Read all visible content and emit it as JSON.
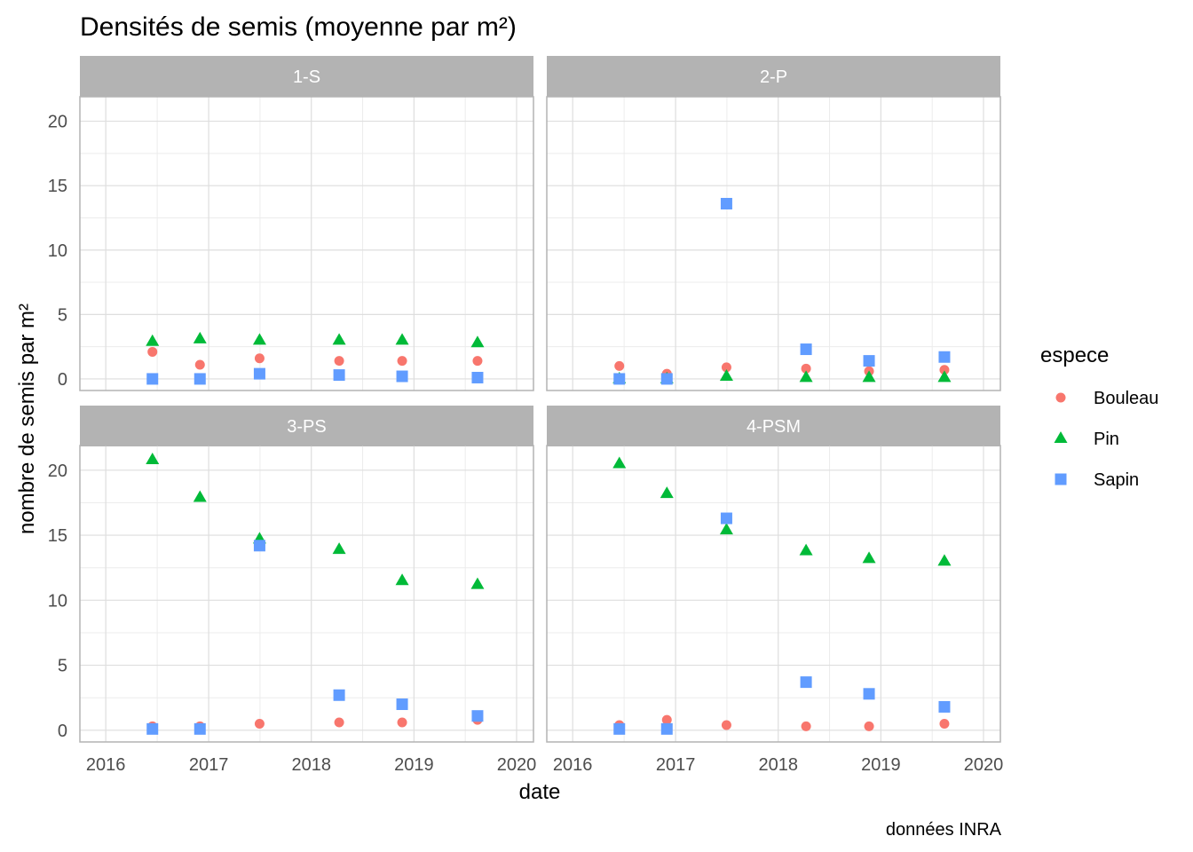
{
  "chart_data": {
    "type": "scatter",
    "title": "Densités de semis (moyenne par m²)",
    "xlabel": "date",
    "ylabel": "nombre de semis par m²",
    "caption": "données INRA",
    "xlim": [
      "2015-10-01",
      "2020-03-01"
    ],
    "ylim": [
      -0.9,
      21.9
    ],
    "x_ticks": [
      "2016-01-01",
      "2017-01-01",
      "2018-01-01",
      "2019-01-01",
      "2020-01-01"
    ],
    "x_tick_labels": [
      "2016",
      "2017",
      "2018",
      "2019",
      "2020"
    ],
    "y_ticks": [
      0,
      5,
      10,
      15,
      20
    ],
    "y_tick_labels": [
      "0",
      "5",
      "10",
      "15",
      "20"
    ],
    "grid": true,
    "legend": {
      "title": "espece",
      "position": "right",
      "entries": [
        {
          "name": "Bouleau",
          "shape": "circle",
          "color": "#F8766D"
        },
        {
          "name": "Pin",
          "shape": "triangle",
          "color": "#00BA38"
        },
        {
          "name": "Sapin",
          "shape": "square",
          "color": "#619CFF"
        }
      ]
    },
    "colors": {
      "strip_bg": "#b3b3b3",
      "grid": "#dedede",
      "panel_border": "#b3b3b3"
    },
    "panels": [
      {
        "label": "1-S",
        "series": [
          {
            "name": "Bouleau",
            "points": [
              [
                "2016-06-15",
                2.1
              ],
              [
                "2016-12-01",
                1.1
              ],
              [
                "2017-07-01",
                1.6
              ],
              [
                "2018-04-10",
                1.4
              ],
              [
                "2018-11-20",
                1.4
              ],
              [
                "2019-08-15",
                1.4
              ]
            ]
          },
          {
            "name": "Pin",
            "points": [
              [
                "2016-06-15",
                2.9
              ],
              [
                "2016-12-01",
                3.1
              ],
              [
                "2017-07-01",
                3.0
              ],
              [
                "2018-04-10",
                3.0
              ],
              [
                "2018-11-20",
                3.0
              ],
              [
                "2019-08-15",
                2.8
              ]
            ]
          },
          {
            "name": "Sapin",
            "points": [
              [
                "2016-06-15",
                0.0
              ],
              [
                "2016-12-01",
                0.0
              ],
              [
                "2017-07-01",
                0.4
              ],
              [
                "2018-04-10",
                0.3
              ],
              [
                "2018-11-20",
                0.2
              ],
              [
                "2019-08-15",
                0.1
              ]
            ]
          }
        ]
      },
      {
        "label": "2-P",
        "series": [
          {
            "name": "Bouleau",
            "points": [
              [
                "2016-06-15",
                1.0
              ],
              [
                "2016-12-01",
                0.4
              ],
              [
                "2017-07-01",
                0.9
              ],
              [
                "2018-04-10",
                0.8
              ],
              [
                "2018-11-20",
                0.6
              ],
              [
                "2019-08-15",
                0.7
              ]
            ]
          },
          {
            "name": "Pin",
            "points": [
              [
                "2016-06-15",
                0.0
              ],
              [
                "2016-12-01",
                0.0
              ],
              [
                "2017-07-01",
                0.2
              ],
              [
                "2018-04-10",
                0.1
              ],
              [
                "2018-11-20",
                0.1
              ],
              [
                "2019-08-15",
                0.1
              ]
            ]
          },
          {
            "name": "Sapin",
            "points": [
              [
                "2016-06-15",
                0.0
              ],
              [
                "2016-12-01",
                0.0
              ],
              [
                "2017-07-01",
                13.6
              ],
              [
                "2018-04-10",
                2.3
              ],
              [
                "2018-11-20",
                1.4
              ],
              [
                "2019-08-15",
                1.7
              ]
            ]
          }
        ]
      },
      {
        "label": "3-PS",
        "series": [
          {
            "name": "Bouleau",
            "points": [
              [
                "2016-06-15",
                0.3
              ],
              [
                "2016-12-01",
                0.3
              ],
              [
                "2017-07-01",
                0.5
              ],
              [
                "2018-04-10",
                0.6
              ],
              [
                "2018-11-20",
                0.6
              ],
              [
                "2019-08-15",
                0.8
              ]
            ]
          },
          {
            "name": "Pin",
            "points": [
              [
                "2016-06-15",
                20.8
              ],
              [
                "2016-12-01",
                17.9
              ],
              [
                "2017-07-01",
                14.7
              ],
              [
                "2018-04-10",
                13.9
              ],
              [
                "2018-11-20",
                11.5
              ],
              [
                "2019-08-15",
                11.2
              ]
            ]
          },
          {
            "name": "Sapin",
            "points": [
              [
                "2016-06-15",
                0.1
              ],
              [
                "2016-12-01",
                0.1
              ],
              [
                "2017-07-01",
                14.2
              ],
              [
                "2018-04-10",
                2.7
              ],
              [
                "2018-11-20",
                2.0
              ],
              [
                "2019-08-15",
                1.1
              ]
            ]
          }
        ]
      },
      {
        "label": "4-PSM",
        "series": [
          {
            "name": "Bouleau",
            "points": [
              [
                "2016-06-15",
                0.4
              ],
              [
                "2016-12-01",
                0.8
              ],
              [
                "2017-07-01",
                0.4
              ],
              [
                "2018-04-10",
                0.3
              ],
              [
                "2018-11-20",
                0.3
              ],
              [
                "2019-08-15",
                0.5
              ]
            ]
          },
          {
            "name": "Pin",
            "points": [
              [
                "2016-06-15",
                20.5
              ],
              [
                "2016-12-01",
                18.2
              ],
              [
                "2017-07-01",
                15.4
              ],
              [
                "2018-04-10",
                13.8
              ],
              [
                "2018-11-20",
                13.2
              ],
              [
                "2019-08-15",
                13.0
              ]
            ]
          },
          {
            "name": "Sapin",
            "points": [
              [
                "2016-06-15",
                0.1
              ],
              [
                "2016-12-01",
                0.1
              ],
              [
                "2017-07-01",
                16.3
              ],
              [
                "2018-04-10",
                3.7
              ],
              [
                "2018-11-20",
                2.8
              ],
              [
                "2019-08-15",
                1.8
              ]
            ]
          }
        ]
      }
    ]
  }
}
